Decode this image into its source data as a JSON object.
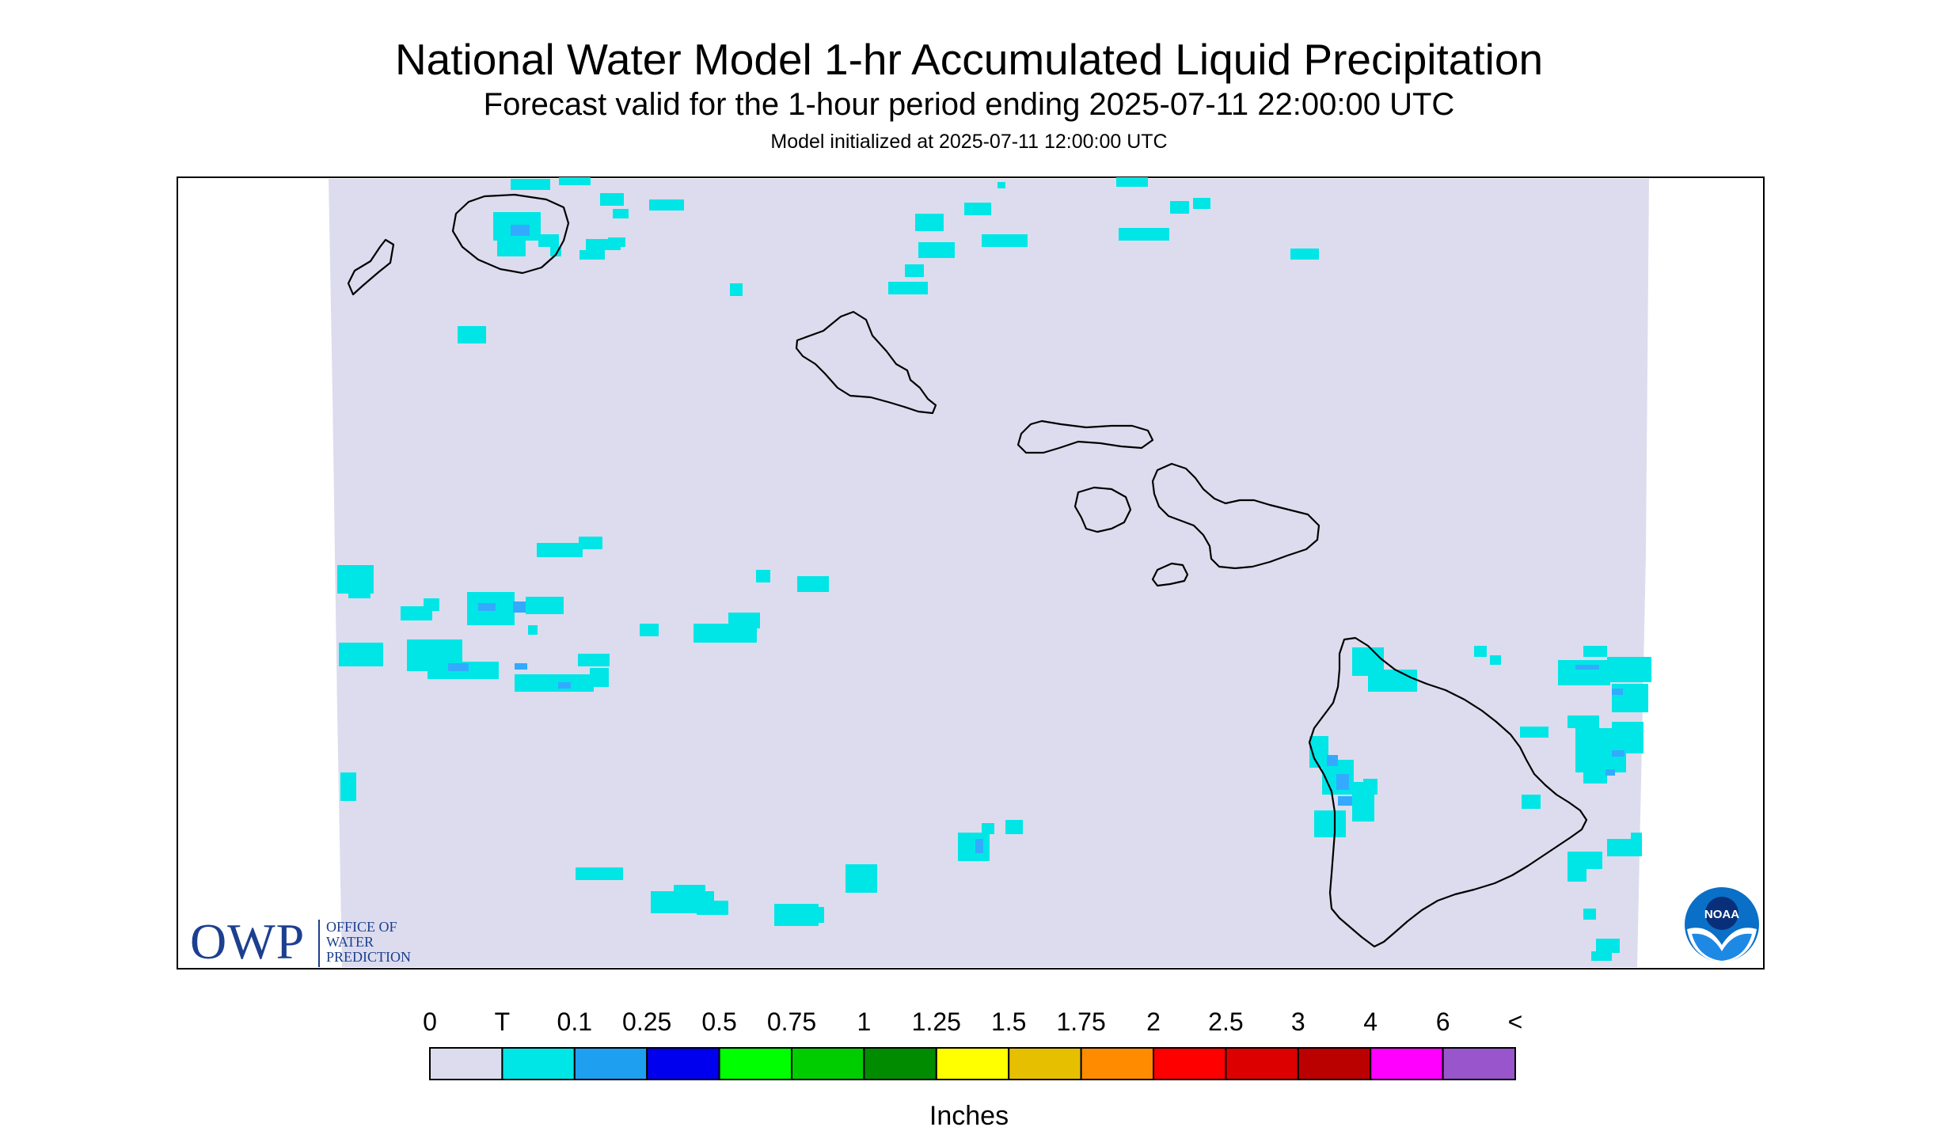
{
  "title": "National Water Model 1-hr Accumulated Liquid Precipitation",
  "subtitle": "Forecast valid for the 1-hour period ending 2025-07-11 22:00:00 UTC",
  "init": "Model initialized at 2025-07-11 12:00:00 UTC",
  "owp_logo": {
    "letters": "OWP",
    "line1": "OFFICE OF",
    "line2": "WATER",
    "line3": "PREDICTION"
  },
  "noaa_logo": {
    "text": "NOAA"
  },
  "colors": {
    "no_data": "#ffffff",
    "grid_background": "#dcdcee",
    "trace": "#00e6e6",
    "light": "#33aaff",
    "coastline": "#000000"
  },
  "legend": {
    "units": "Inches",
    "labels": [
      "0",
      "T",
      "0.1",
      "0.25",
      "0.5",
      "0.75",
      "1",
      "1.25",
      "1.5",
      "1.75",
      "2",
      "2.5",
      "3",
      "4",
      "6",
      "<"
    ],
    "colors": [
      "#dcdcee",
      "#00e6e6",
      "#1e9fef",
      "#0000ee",
      "#00ff00",
      "#00cd00",
      "#008b00",
      "#ffff00",
      "#e6c000",
      "#ff8c00",
      "#ff0000",
      "#dd0000",
      "#bb0000",
      "#ff00ff",
      "#9955cc"
    ]
  },
  "islands": [
    "Niihau",
    "Kauai",
    "Oahu",
    "Molokai",
    "Lanai",
    "Maui",
    "Kahoolawe",
    "Hawaii"
  ]
}
